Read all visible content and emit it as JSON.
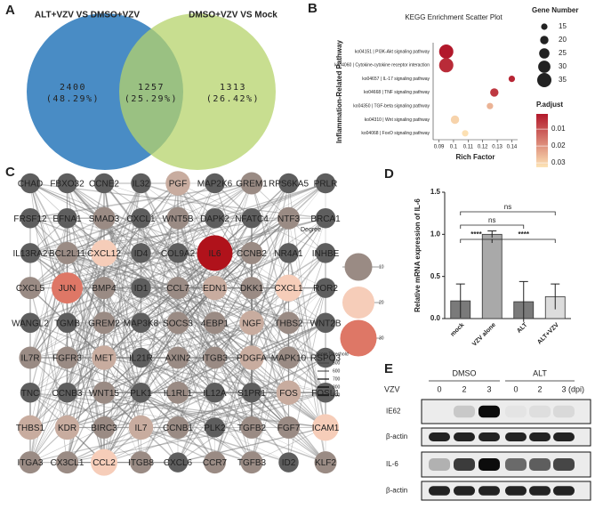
{
  "panels": [
    "A",
    "B",
    "C",
    "D",
    "E"
  ],
  "chart_data": [
    {
      "type": "venn",
      "sets": [
        {
          "name": "ALT+VZV VS DMSO+VZV",
          "color": "#3f86c2"
        },
        {
          "name": "DMSO+VZV VS Mock",
          "color": "#b5d36b"
        }
      ],
      "values": [
        2400,
        1257,
        1313
      ],
      "percentages": [
        48.29,
        25.29,
        26.42
      ],
      "percentage_labels": [
        "(48.29%)",
        "(25.29%)",
        "(26.42%)"
      ]
    },
    {
      "type": "scatter",
      "title": "KEGG Enrichment Scatter Plot",
      "xlabel": "Rich Factor",
      "ylabel": "Inflammation-Related Pathway",
      "categories": [
        "ko04151 | PI3K-Akt signaling pathway",
        "ko04060 | Cytokine-cytokine receptor interaction",
        "ko04657 | IL-17 signaling pathway",
        "ko04668 | TNF signaling pathway",
        "ko04350 | TGF-beta signaling pathway",
        "ko04310 | Wnt signaling pathway",
        "ko04068 | FoxO signaling pathway"
      ],
      "x": [
        0.095,
        0.095,
        0.14,
        0.128,
        0.125,
        0.101,
        0.108
      ],
      "sizes": [
        35,
        35,
        15,
        20,
        15,
        20,
        15
      ],
      "p_adjust": [
        0.001,
        0.004,
        0.003,
        0.006,
        0.025,
        0.03,
        0.032
      ],
      "xlim": [
        0.086,
        0.144
      ],
      "xticks": [
        0.09,
        0.1,
        0.11,
        0.12,
        0.13,
        0.14
      ],
      "size_legend": {
        "title": "Gene Number",
        "values": [
          15,
          20,
          25,
          30,
          35
        ]
      },
      "color_legend": {
        "title": "P.adjust",
        "lim": [
          0.001,
          0.0326
        ],
        "ticks": [
          0.01,
          0.02,
          0.03
        ],
        "colors": [
          "#b2182b",
          "#fde4b6"
        ]
      }
    },
    {
      "type": "bar",
      "ylabel": "Relative mRNA expression of IL-6",
      "categories": [
        "mock",
        "VZV alone",
        "ALT",
        "ALT+VZV"
      ],
      "values": [
        0.21,
        1.0,
        0.2,
        0.26
      ],
      "errors": [
        0.2,
        0.04,
        0.24,
        0.15
      ],
      "colors": [
        "#7a7a7a",
        "#a9a9a9",
        "#7a7a7a",
        "#dcdcdc"
      ],
      "ylim": [
        0,
        1.5
      ],
      "yticks": [
        {
          "value": 0,
          "label": "0.0"
        },
        0.5,
        {
          "value": 1,
          "label": "1.0"
        },
        1.5
      ],
      "comparisons": [
        {
          "from": 0,
          "to": 3,
          "label": "ns"
        },
        {
          "from": 0,
          "to": 2,
          "label": "ns"
        },
        {
          "from": 0,
          "to": 1,
          "label": "****"
        },
        {
          "from": 1,
          "to": 3,
          "label": "****"
        }
      ]
    }
  ],
  "network": {
    "nodes": [
      {
        "label": "CHAD",
        "degree": 5
      },
      {
        "label": "FBXO32",
        "degree": 5
      },
      {
        "label": "CCNE2",
        "degree": 5
      },
      {
        "label": "IL32",
        "degree": 5
      },
      {
        "label": "PGF",
        "degree": 15
      },
      {
        "label": "MAP2K6",
        "degree": 5
      },
      {
        "label": "GREM1",
        "degree": 10
      },
      {
        "label": "RPS6KA5",
        "degree": 5
      },
      {
        "label": "PRLR",
        "degree": 5
      },
      {
        "label": "FRSF12",
        "degree": 5
      },
      {
        "label": "EFNA1",
        "degree": 5
      },
      {
        "label": "SMAD3",
        "degree": 10
      },
      {
        "label": "CXCL1",
        "degree": 5
      },
      {
        "label": "WNT5B",
        "degree": 10
      },
      {
        "label": "DAPK2",
        "degree": 5
      },
      {
        "label": "NFATC4",
        "degree": 5
      },
      {
        "label": "NTF3",
        "degree": 10
      },
      {
        "label": "BRCA1",
        "degree": 5
      },
      {
        "label": "IL13RA2",
        "degree": 5
      },
      {
        "label": "BCL2L11",
        "degree": 10
      },
      {
        "label": "CXCL12",
        "degree": 20
      },
      {
        "label": "ID4",
        "degree": 5
      },
      {
        "label": "COL9A2",
        "degree": 5
      },
      {
        "label": "IL6",
        "degree": 40
      },
      {
        "label": "CCNB2",
        "degree": 10
      },
      {
        "label": "NR4A1",
        "degree": 5
      },
      {
        "label": "INHBE",
        "degree": 5
      },
      {
        "label": "CXCL5",
        "degree": 10
      },
      {
        "label": "JUN",
        "degree": 30
      },
      {
        "label": "BMP4",
        "degree": 10
      },
      {
        "label": "ID1",
        "degree": 5
      },
      {
        "label": "CCL7",
        "degree": 10
      },
      {
        "label": "EDN1",
        "degree": 15
      },
      {
        "label": "DKK1",
        "degree": 10
      },
      {
        "label": "CXCL1",
        "degree": 20
      },
      {
        "label": "ROR2",
        "degree": 5
      },
      {
        "label": "WANGL2",
        "degree": 5
      },
      {
        "label": "TGMB",
        "degree": 5
      },
      {
        "label": "GREM2",
        "degree": 10
      },
      {
        "label": "MAP3K8",
        "degree": 5
      },
      {
        "label": "SOCS3",
        "degree": 10
      },
      {
        "label": "4EBP1",
        "degree": 10
      },
      {
        "label": "NGF",
        "degree": 15
      },
      {
        "label": "THBS2",
        "degree": 10
      },
      {
        "label": "WNT2B",
        "degree": 5
      },
      {
        "label": "IL7R",
        "degree": 10
      },
      {
        "label": "FGFR3",
        "degree": 10
      },
      {
        "label": "MET",
        "degree": 15
      },
      {
        "label": "IL21R",
        "degree": 5
      },
      {
        "label": "AXIN2",
        "degree": 10
      },
      {
        "label": "ITGB3",
        "degree": 10
      },
      {
        "label": "PDGFA",
        "degree": 15
      },
      {
        "label": "MAPK10",
        "degree": 10
      },
      {
        "label": "RSPO3",
        "degree": 5
      },
      {
        "label": "TNC",
        "degree": 5
      },
      {
        "label": "CCNB3",
        "degree": 5
      },
      {
        "label": "WNT15",
        "degree": 10
      },
      {
        "label": "PLK1",
        "degree": 5
      },
      {
        "label": "IL1RL1",
        "degree": 10
      },
      {
        "label": "IL12A",
        "degree": 5
      },
      {
        "label": "S1PR1",
        "degree": 5
      },
      {
        "label": "FOS",
        "degree": 15
      },
      {
        "label": "FOSL1",
        "degree": 5
      },
      {
        "label": "THBS1",
        "degree": 15
      },
      {
        "label": "KDR",
        "degree": 15
      },
      {
        "label": "BIRC3",
        "degree": 10
      },
      {
        "label": "IL7",
        "degree": 15
      },
      {
        "label": "CCNB1",
        "degree": 10
      },
      {
        "label": "PLK2",
        "degree": 5
      },
      {
        "label": "TGFB2",
        "degree": 10
      },
      {
        "label": "FGF7",
        "degree": 10
      },
      {
        "label": "ICAM1",
        "degree": 20
      },
      {
        "label": "ITGA3",
        "degree": 10
      },
      {
        "label": "CX3CL1",
        "degree": 10
      },
      {
        "label": "CCL2",
        "degree": 20
      },
      {
        "label": "ITGB8",
        "degree": 10
      },
      {
        "label": "CXCL6",
        "degree": 5
      },
      {
        "label": "CCR7",
        "degree": 10
      },
      {
        "label": "TGFB3",
        "degree": 10
      },
      {
        "label": "ID2",
        "degree": 5
      },
      {
        "label": "KLF2",
        "degree": 10
      }
    ],
    "degree_legend": {
      "title": "Degree",
      "values": [
        10,
        20,
        30
      ]
    },
    "score_legend": {
      "title": "Score Threshold",
      "values": [
        500,
        600,
        700,
        800,
        900
      ]
    }
  },
  "blot": {
    "treatment": "VZV",
    "unit": "(dpi)",
    "groups": [
      "DMSO",
      "ALT"
    ],
    "lanes": [
      0,
      2,
      3,
      0,
      2,
      3
    ],
    "rows": [
      {
        "name": "IE62",
        "bands": [
          0.0,
          0.15,
          0.95,
          0.03,
          0.06,
          0.08
        ]
      },
      {
        "name": "β-actin",
        "bands": [
          0.85,
          0.85,
          0.85,
          0.85,
          0.85,
          0.85
        ]
      },
      {
        "name": "IL-6",
        "bands": [
          0.25,
          0.75,
          0.95,
          0.55,
          0.6,
          0.7
        ]
      },
      {
        "name": "β-actin",
        "bands": [
          0.85,
          0.85,
          0.85,
          0.85,
          0.85,
          0.85
        ]
      }
    ]
  }
}
